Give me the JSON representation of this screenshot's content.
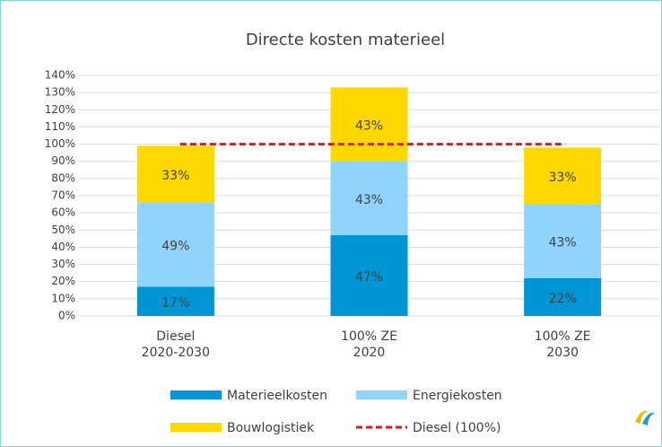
{
  "chart_data": {
    "type": "stacked_bar",
    "title": "Directe kosten materieel",
    "categories": [
      [
        "Diesel",
        "2020-2030"
      ],
      [
        "100% ZE",
        "2020"
      ],
      [
        "100% ZE",
        "2030"
      ]
    ],
    "series": [
      {
        "name": "Materieelkosten",
        "color": "#0096d6",
        "values": [
          17,
          47,
          22
        ],
        "value_labels": [
          "17%",
          "47%",
          "22%"
        ]
      },
      {
        "name": "Energiekosten",
        "color": "#91d4fb",
        "values": [
          49,
          43,
          43
        ],
        "value_labels": [
          "49%",
          "43%",
          "43%"
        ]
      },
      {
        "name": "Bouwlogistiek",
        "color": "#ffd800",
        "values": [
          33,
          43,
          33
        ],
        "value_labels": [
          "33%",
          "43%",
          "33%"
        ]
      }
    ],
    "reference_line": {
      "name": "Diesel (100%)",
      "value": 100,
      "color": "#e8141c"
    },
    "ylim": [
      0,
      140
    ],
    "yticks": [
      {
        "value": 0,
        "label": "0%"
      },
      {
        "value": 10,
        "label": "10%"
      },
      {
        "value": 20,
        "label": "20%"
      },
      {
        "value": 30,
        "label": "30%"
      },
      {
        "value": 40,
        "label": "40%"
      },
      {
        "value": 50,
        "label": "50%"
      },
      {
        "value": 60,
        "label": "60%"
      },
      {
        "value": 70,
        "label": "70%"
      },
      {
        "value": 80,
        "label": "80%"
      },
      {
        "value": 90,
        "label": "90%"
      },
      {
        "value": 100,
        "label": "100%"
      },
      {
        "value": 110,
        "label": "110%"
      },
      {
        "value": 120,
        "label": "120%"
      },
      {
        "value": 130,
        "label": "130%"
      },
      {
        "value": 140,
        "label": "140%"
      }
    ],
    "grid": true
  }
}
